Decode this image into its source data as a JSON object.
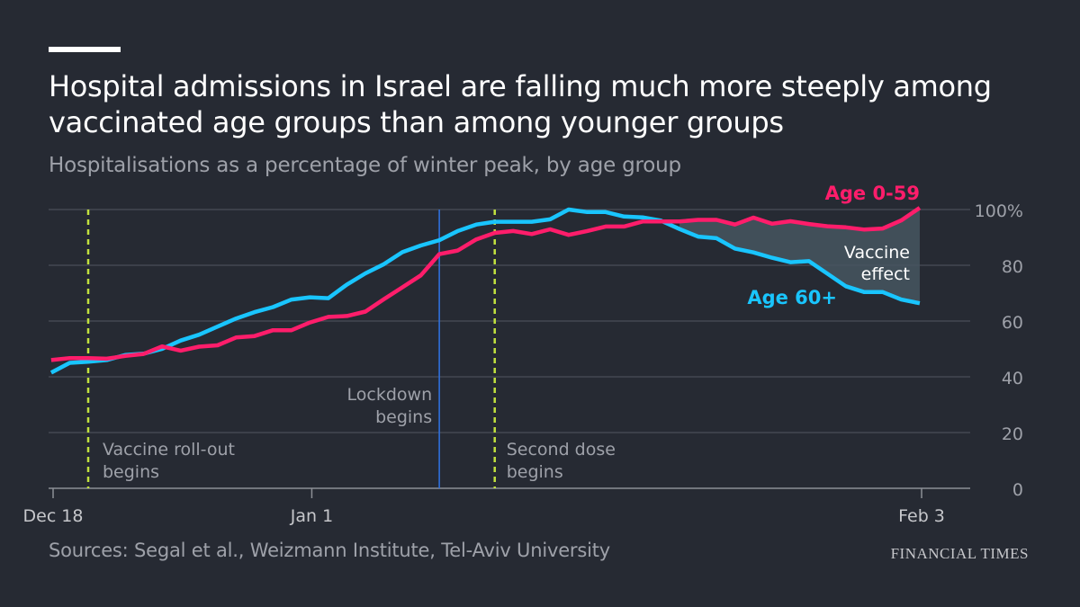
{
  "header": {
    "title": "Hospital admissions in Israel are falling much more steeply among vaccinated age groups than among younger groups",
    "subtitle": "Hospitalisations as a percentage of winter peak, by age group"
  },
  "footer": {
    "source": "Sources: Segal et al., Weizmann Institute, Tel-Aviv University",
    "brand": "FINANCIAL TIMES"
  },
  "colors": {
    "background": "#262a33",
    "age_0_59": "#ff1d6b",
    "age_60_plus": "#19c5ff",
    "vaccine_marker": "#c2e23e",
    "lockdown_marker": "#2f6fda",
    "gap_fill": "#465660"
  },
  "chart_data": {
    "type": "line",
    "title": "Hospital admissions in Israel are falling much more steeply among vaccinated age groups than among younger groups",
    "subtitle": "Hospitalisations as a percentage of winter peak, by age group",
    "x_start": "Dec 18",
    "x_end": "Feb 3",
    "xlim": [
      0,
      47
    ],
    "ylim": [
      0,
      100
    ],
    "y_ticks": [
      {
        "value": 0,
        "label": "0"
      },
      {
        "value": 20,
        "label": "20"
      },
      {
        "value": 40,
        "label": "40"
      },
      {
        "value": 60,
        "label": "60"
      },
      {
        "value": 80,
        "label": "80"
      },
      {
        "value": 100,
        "label": "100%"
      }
    ],
    "x_ticks": [
      {
        "value": 0,
        "label": "Dec 18"
      },
      {
        "value": 14,
        "label": "Jan 1"
      },
      {
        "value": 47,
        "label": "Feb 3"
      }
    ],
    "y_axis_position": "right",
    "grid": true,
    "series": [
      {
        "name": "Age 0-59",
        "color": "#ff1d6b",
        "x": [
          -0.1,
          0.9,
          1.9,
          2.9,
          3.9,
          4.9,
          5.9,
          6.9,
          7.9,
          8.9,
          9.9,
          10.9,
          11.9,
          12.9,
          13.9,
          14.9,
          15.9,
          16.9,
          17.9,
          18.9,
          19.9,
          20.9,
          21.9,
          22.9,
          23.9,
          24.9,
          25.9,
          26.9,
          27.9,
          28.9,
          29.9,
          30.9,
          31.9,
          32.9,
          33.9,
          34.9,
          35.9,
          36.9,
          37.9,
          38.9,
          39.9,
          40.9,
          41.9,
          42.9,
          43.9,
          44.9,
          45.9,
          46.9
        ],
        "y": [
          46.0,
          46.7,
          46.7,
          46.5,
          47.5,
          48.2,
          50.9,
          49.4,
          50.8,
          51.3,
          54.1,
          54.6,
          56.7,
          56.7,
          59.5,
          61.5,
          61.8,
          63.4,
          67.8,
          72.1,
          76.4,
          84.0,
          85.3,
          89.3,
          91.6,
          92.3,
          91.2,
          92.9,
          90.9,
          92.3,
          93.9,
          93.9,
          95.7,
          95.7,
          95.7,
          96.3,
          96.3,
          94.6,
          97.1,
          94.9,
          95.8,
          94.8,
          94.0,
          93.6,
          92.8,
          93.2,
          96.1,
          100.6
        ]
      },
      {
        "name": "Age 60+",
        "color": "#19c5ff",
        "x": [
          -0.1,
          0.9,
          1.9,
          2.9,
          3.9,
          4.9,
          5.9,
          6.9,
          7.9,
          8.9,
          9.9,
          10.9,
          11.9,
          12.9,
          13.9,
          14.9,
          15.9,
          16.9,
          17.9,
          18.9,
          19.9,
          20.9,
          21.9,
          22.9,
          23.9,
          24.9,
          25.9,
          26.9,
          27.9,
          28.9,
          29.9,
          30.9,
          31.9,
          32.9,
          33.9,
          34.9,
          35.9,
          36.9,
          37.9,
          38.9,
          39.9,
          40.9,
          41.9,
          42.9,
          43.9,
          44.9,
          45.9,
          46.9
        ],
        "y": [
          41.5,
          45.0,
          45.4,
          46.0,
          47.8,
          48.3,
          50.0,
          53.0,
          55.1,
          58.0,
          60.9,
          63.2,
          65.0,
          67.7,
          68.5,
          68.2,
          73.1,
          77.1,
          80.4,
          84.7,
          87.1,
          89.0,
          92.3,
          94.6,
          95.6,
          95.6,
          95.6,
          96.5,
          100.0,
          99.1,
          99.1,
          97.5,
          97.2,
          96.0,
          93.0,
          90.3,
          89.7,
          86.0,
          84.6,
          82.7,
          81.1,
          81.5,
          77.0,
          72.5,
          70.4,
          70.4,
          67.7,
          66.4
        ]
      }
    ],
    "annotations": [
      {
        "type": "vline",
        "x": 1.9,
        "style": "dashed",
        "color": "#c2e23e",
        "lines": [
          "Vaccine roll-out",
          "begins"
        ]
      },
      {
        "type": "vline",
        "x": 20.9,
        "style": "solid",
        "color": "#2f6fda",
        "lines": [
          "Lockdown",
          "begins"
        ]
      },
      {
        "type": "vline",
        "x": 23.9,
        "style": "dashed",
        "color": "#c2e23e",
        "lines": [
          "Second dose",
          "begins"
        ]
      },
      {
        "type": "label",
        "series": "Age 0-59",
        "text": "Age 0-59"
      },
      {
        "type": "label",
        "series": "Age 60+",
        "text": "Age 60+"
      },
      {
        "type": "shaded_gap",
        "lines": [
          "Vaccine",
          "effect"
        ]
      }
    ]
  }
}
